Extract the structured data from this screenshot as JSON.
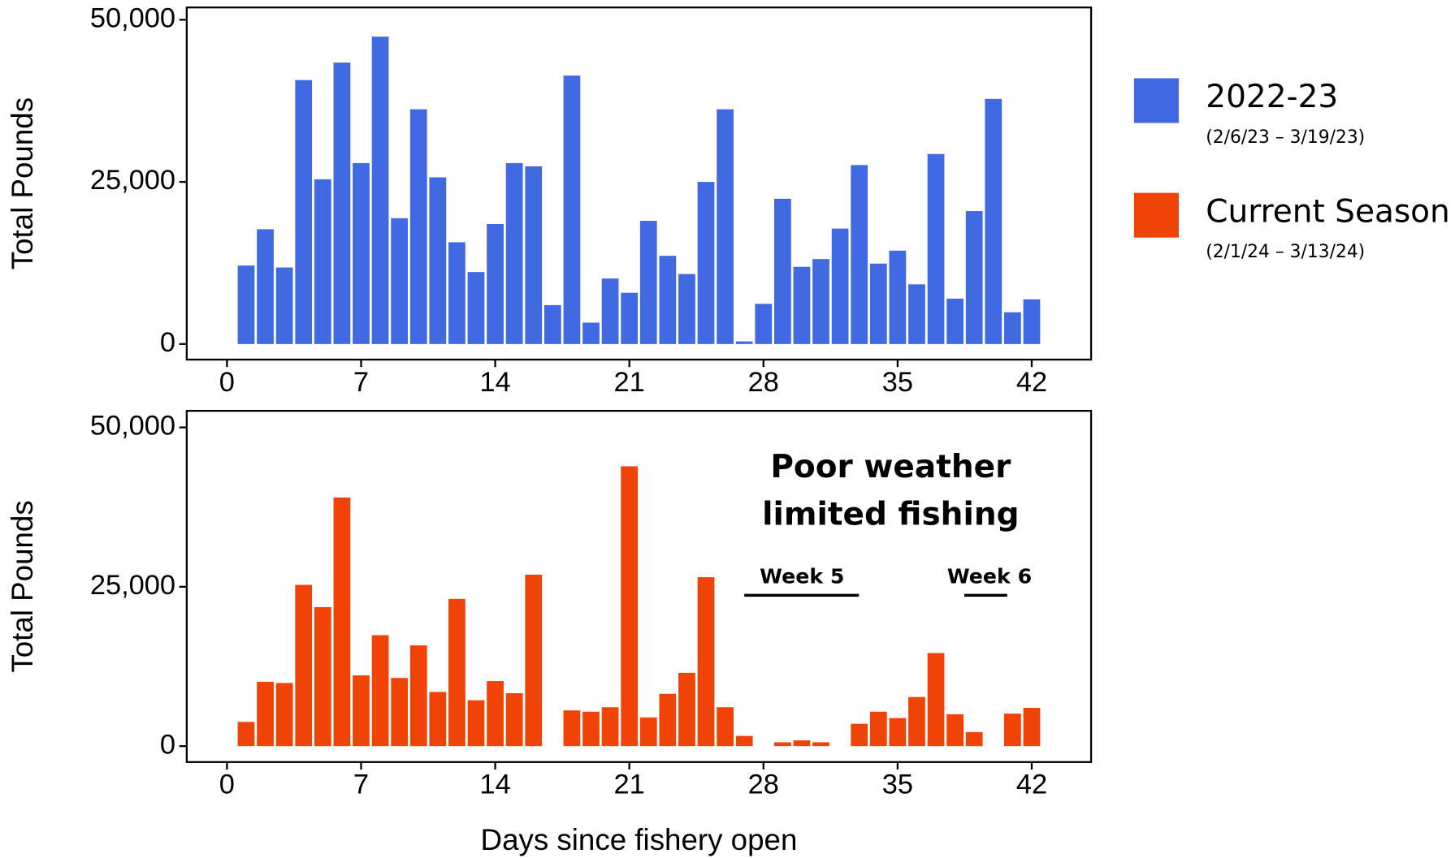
{
  "chart_data": [
    {
      "type": "bar",
      "ylabel": "Total Pounds",
      "x": [
        1,
        2,
        3,
        4,
        5,
        6,
        7,
        8,
        9,
        10,
        11,
        12,
        13,
        14,
        15,
        16,
        17,
        18,
        19,
        20,
        21,
        22,
        23,
        24,
        25,
        26,
        27,
        28,
        29,
        30,
        31,
        32,
        33,
        34,
        35,
        36,
        37,
        38,
        39,
        40,
        41,
        42
      ],
      "series": [
        {
          "name": "2022-23",
          "color": "#4169e1",
          "legend_note": "(2/6/23 – 3/19/23)",
          "values": [
            12100,
            17700,
            11800,
            40700,
            25400,
            43400,
            27900,
            47400,
            19400,
            36200,
            25700,
            15700,
            11100,
            18500,
            27900,
            27400,
            6000,
            41400,
            3300,
            10100,
            7900,
            19000,
            13600,
            10800,
            25000,
            36200,
            400,
            6200,
            22400,
            11900,
            13100,
            17800,
            27600,
            12400,
            14400,
            9200,
            29300,
            7000,
            20500,
            37800,
            4900,
            6900
          ]
        }
      ],
      "xlim": [
        -2.1,
        45.1
      ],
      "xticks": [
        0,
        7,
        14,
        21,
        28,
        35,
        42
      ],
      "ylim": [
        -2400,
        51900
      ],
      "yticks": [
        0,
        {
          "value": 25000,
          "label": "25,000"
        },
        {
          "value": 50000,
          "label": "50,000"
        }
      ]
    },
    {
      "type": "bar",
      "ylabel": "Total Pounds",
      "xlabel": "Days since fishery open",
      "x": [
        1,
        2,
        3,
        4,
        5,
        6,
        7,
        8,
        9,
        10,
        11,
        12,
        13,
        14,
        15,
        16,
        17,
        18,
        19,
        20,
        21,
        22,
        23,
        24,
        25,
        26,
        27,
        28,
        29,
        30,
        31,
        32,
        33,
        34,
        35,
        36,
        37,
        38,
        39,
        40,
        41,
        42
      ],
      "series": [
        {
          "name": "Current Season",
          "color": "#f04308",
          "legend_note": "(2/1/24 – 3/13/24)",
          "values": [
            3800,
            10100,
            9900,
            25300,
            21800,
            39000,
            11100,
            17400,
            10700,
            15800,
            8500,
            23100,
            7200,
            10200,
            8300,
            26900,
            0,
            5600,
            5400,
            6100,
            43900,
            4500,
            8200,
            11500,
            26500,
            6100,
            1600,
            0,
            600,
            900,
            600,
            0,
            3500,
            5400,
            4400,
            7700,
            14600,
            5000,
            2200,
            0,
            5100,
            6000
          ]
        }
      ],
      "xlim": [
        -2.1,
        45.1
      ],
      "xticks": [
        0,
        7,
        14,
        21,
        28,
        35,
        42
      ],
      "ylim": [
        -2500,
        52600
      ],
      "yticks": [
        0,
        {
          "value": 25000,
          "label": "25,000"
        },
        {
          "value": 50000,
          "label": "50,000"
        }
      ],
      "annotation_lines": [
        "Poor weather",
        "limited fishing"
      ],
      "week_labels": [
        "Week 5",
        "Week 6"
      ]
    }
  ]
}
